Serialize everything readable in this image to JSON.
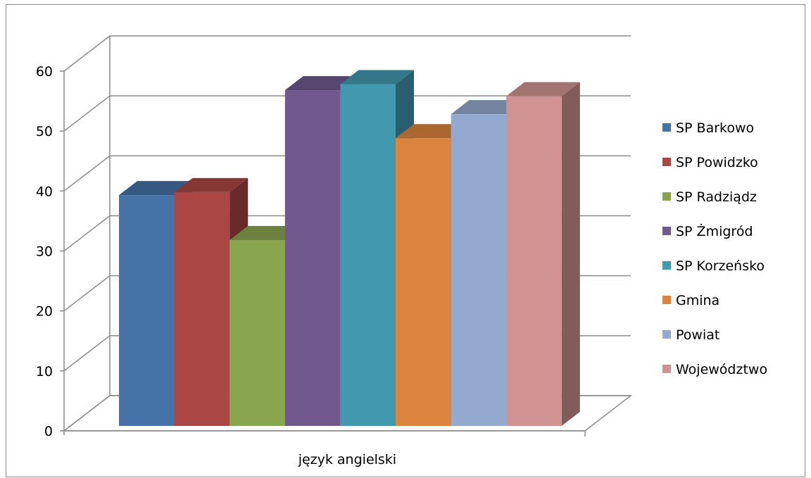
{
  "chart_data": {
    "type": "bar",
    "categories": [
      "język angielski"
    ],
    "series": [
      {
        "name": "SP Barkowo",
        "values": [
          38.5
        ],
        "color": "#4572a7"
      },
      {
        "name": "SP Powidzko",
        "values": [
          39.0
        ],
        "color": "#aa4643"
      },
      {
        "name": "SP Radziądz",
        "values": [
          31.0
        ],
        "color": "#89a54e"
      },
      {
        "name": "SP Żmigród",
        "values": [
          56.0
        ],
        "color": "#71588f"
      },
      {
        "name": "SP Korzeńsko",
        "values": [
          57.0
        ],
        "color": "#4198af"
      },
      {
        "name": "Gmina",
        "values": [
          48.0
        ],
        "color": "#db843d"
      },
      {
        "name": "Powiat",
        "values": [
          52.0
        ],
        "color": "#93a9cf"
      },
      {
        "name": "Województwo",
        "values": [
          55.0
        ],
        "color": "#d19392"
      }
    ],
    "yticks": [
      0,
      10,
      20,
      30,
      40,
      50,
      60
    ],
    "ylim": [
      0,
      60
    ],
    "legend_position": "right",
    "grid": true
  }
}
